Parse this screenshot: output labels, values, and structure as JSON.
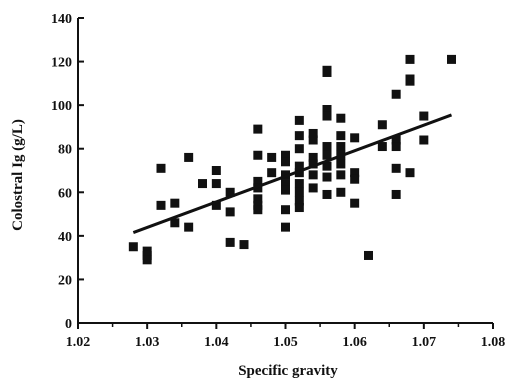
{
  "chart_data": {
    "type": "scatter",
    "title": "",
    "xlabel": "Specific gravity",
    "ylabel": "Colostral Ig (g/L)",
    "xlim": [
      1.02,
      1.08
    ],
    "ylim": [
      0,
      140
    ],
    "xticks": [
      "1.02",
      "1.03",
      "1.04",
      "1.05",
      "1.06",
      "1.07",
      "1.08"
    ],
    "yticks": [
      "0",
      "20",
      "40",
      "60",
      "80",
      "100",
      "120",
      "140"
    ],
    "grid": false,
    "marker": "square",
    "marker_color": "#111111",
    "points": [
      [
        1.028,
        35
      ],
      [
        1.03,
        33
      ],
      [
        1.03,
        31
      ],
      [
        1.03,
        29
      ],
      [
        1.032,
        71
      ],
      [
        1.032,
        54
      ],
      [
        1.034,
        55
      ],
      [
        1.034,
        46
      ],
      [
        1.036,
        76
      ],
      [
        1.036,
        44
      ],
      [
        1.038,
        64
      ],
      [
        1.04,
        70
      ],
      [
        1.04,
        64
      ],
      [
        1.04,
        54
      ],
      [
        1.042,
        60
      ],
      [
        1.042,
        51
      ],
      [
        1.042,
        37
      ],
      [
        1.044,
        36
      ],
      [
        1.046,
        89
      ],
      [
        1.046,
        77
      ],
      [
        1.046,
        65
      ],
      [
        1.046,
        62
      ],
      [
        1.046,
        57
      ],
      [
        1.046,
        54
      ],
      [
        1.046,
        52
      ],
      [
        1.048,
        76
      ],
      [
        1.048,
        69
      ],
      [
        1.05,
        77
      ],
      [
        1.05,
        74
      ],
      [
        1.05,
        68
      ],
      [
        1.05,
        64
      ],
      [
        1.05,
        61
      ],
      [
        1.05,
        52
      ],
      [
        1.05,
        44
      ],
      [
        1.052,
        93
      ],
      [
        1.052,
        86
      ],
      [
        1.052,
        80
      ],
      [
        1.052,
        72
      ],
      [
        1.052,
        69
      ],
      [
        1.052,
        64
      ],
      [
        1.052,
        60
      ],
      [
        1.052,
        56
      ],
      [
        1.052,
        53
      ],
      [
        1.054,
        87
      ],
      [
        1.054,
        84
      ],
      [
        1.054,
        76
      ],
      [
        1.054,
        73
      ],
      [
        1.054,
        68
      ],
      [
        1.054,
        62
      ],
      [
        1.056,
        116
      ],
      [
        1.056,
        115
      ],
      [
        1.056,
        98
      ],
      [
        1.056,
        95
      ],
      [
        1.056,
        81
      ],
      [
        1.056,
        77
      ],
      [
        1.056,
        72
      ],
      [
        1.056,
        67
      ],
      [
        1.056,
        59
      ],
      [
        1.058,
        94
      ],
      [
        1.058,
        86
      ],
      [
        1.058,
        81
      ],
      [
        1.058,
        77
      ],
      [
        1.058,
        73
      ],
      [
        1.058,
        68
      ],
      [
        1.058,
        60
      ],
      [
        1.06,
        85
      ],
      [
        1.06,
        69
      ],
      [
        1.06,
        66
      ],
      [
        1.06,
        55
      ],
      [
        1.062,
        31
      ],
      [
        1.064,
        91
      ],
      [
        1.064,
        81
      ],
      [
        1.066,
        105
      ],
      [
        1.066,
        84
      ],
      [
        1.066,
        81
      ],
      [
        1.066,
        71
      ],
      [
        1.066,
        59
      ],
      [
        1.068,
        121
      ],
      [
        1.068,
        112
      ],
      [
        1.068,
        111
      ],
      [
        1.068,
        69
      ],
      [
        1.07,
        95
      ],
      [
        1.07,
        84
      ],
      [
        1.074,
        121
      ]
    ],
    "trendline": {
      "type": "linear",
      "x": [
        1.028,
        1.074
      ],
      "y": [
        41.5,
        95.5
      ]
    }
  }
}
